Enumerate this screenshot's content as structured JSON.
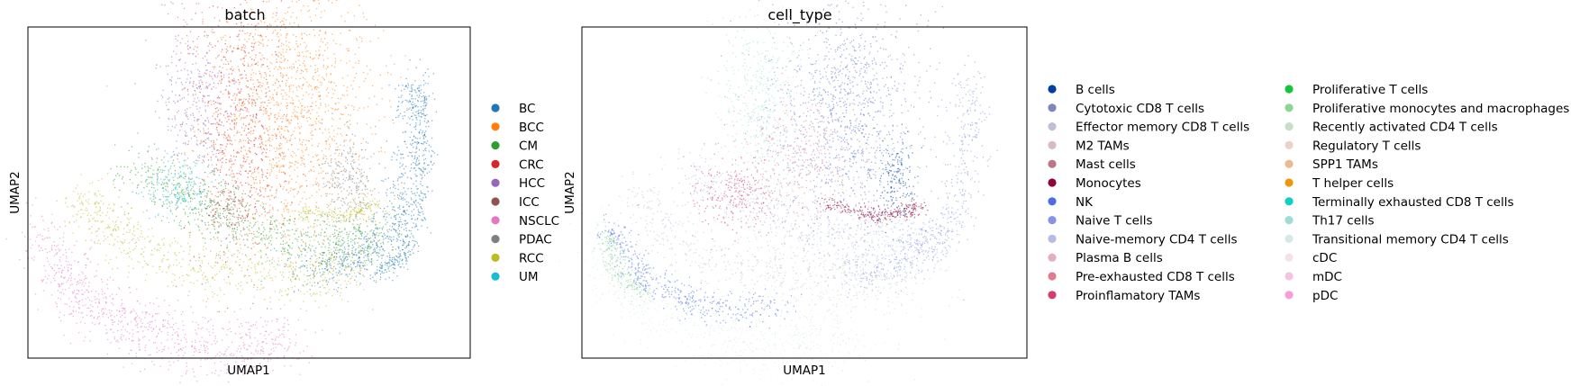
{
  "chart_data": [
    {
      "type": "scatter",
      "title": "batch",
      "xlabel": "UMAP1",
      "ylabel": "UMAP2",
      "grid": false,
      "legend_position": "right",
      "series": [
        {
          "name": "BC",
          "color": "#1f77b4"
        },
        {
          "name": "BCC",
          "color": "#ff7f0e"
        },
        {
          "name": "CM",
          "color": "#2ca02c"
        },
        {
          "name": "CRC",
          "color": "#d62728"
        },
        {
          "name": "HCC",
          "color": "#9467bd"
        },
        {
          "name": "ICC",
          "color": "#8c564b"
        },
        {
          "name": "NSCLC",
          "color": "#e377c2"
        },
        {
          "name": "PDAC",
          "color": "#7f7f7f"
        },
        {
          "name": "RCC",
          "color": "#bcbd22"
        },
        {
          "name": "UM",
          "color": "#17becf"
        }
      ]
    },
    {
      "type": "scatter",
      "title": "cell_type",
      "xlabel": "UMAP1",
      "ylabel": "UMAP2",
      "grid": false,
      "legend_position": "right",
      "series": [
        {
          "name": "B cells",
          "color": "#023fa5"
        },
        {
          "name": "Cytotoxic CD8 T cells",
          "color": "#7d87b9"
        },
        {
          "name": "Effector memory CD8 T cells",
          "color": "#bec1d4"
        },
        {
          "name": "M2 TAMs",
          "color": "#d6bcc0"
        },
        {
          "name": "Mast cells",
          "color": "#bb7784"
        },
        {
          "name": "Monocytes",
          "color": "#8e063b"
        },
        {
          "name": "NK",
          "color": "#4a6fe3"
        },
        {
          "name": "Naive T cells",
          "color": "#8595e1"
        },
        {
          "name": "Naive-memory CD4 T cells",
          "color": "#b5bbe3"
        },
        {
          "name": "Plasma B cells",
          "color": "#e6afb9"
        },
        {
          "name": "Pre-exhausted CD8 T cells",
          "color": "#e07b91"
        },
        {
          "name": "Proinflamatory TAMs",
          "color": "#d33f6a"
        },
        {
          "name": "Proliferative T cells",
          "color": "#11c638"
        },
        {
          "name": "Proliferative monocytes and macrophages",
          "color": "#8dd593"
        },
        {
          "name": "Recently activated CD4 T cells",
          "color": "#c6dec7"
        },
        {
          "name": "Regulatory T cells",
          "color": "#ead3c6"
        },
        {
          "name": "SPP1 TAMs",
          "color": "#f0b98d"
        },
        {
          "name": "T helper cells",
          "color": "#ef9708"
        },
        {
          "name": "Terminally exhausted CD8 T cells",
          "color": "#0fcfc0"
        },
        {
          "name": "Th17 cells",
          "color": "#9cded6"
        },
        {
          "name": "Transitional memory CD4 T cells",
          "color": "#d5eae7"
        },
        {
          "name": "cDC",
          "color": "#f3e1eb"
        },
        {
          "name": "mDC",
          "color": "#f6c4e1"
        },
        {
          "name": "pDC",
          "color": "#f79cd4"
        }
      ]
    }
  ]
}
